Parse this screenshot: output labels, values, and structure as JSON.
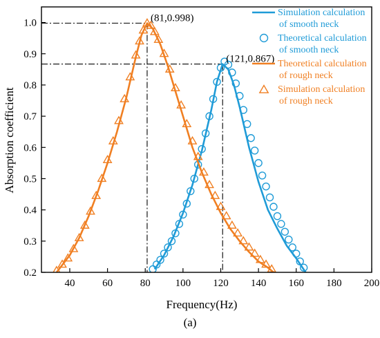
{
  "chart_data": {
    "type": "line",
    "xlabel": "Frequency(Hz)",
    "ylabel": "Absorption coefficient",
    "panel_label": "(a)",
    "xlim": [
      25,
      200
    ],
    "ylim": [
      0.2,
      1.05
    ],
    "xticks": [
      40,
      60,
      80,
      100,
      120,
      140,
      160,
      180,
      200
    ],
    "yticks": [
      0.2,
      0.3,
      0.4,
      0.5,
      0.6,
      0.7,
      0.8,
      0.9,
      1.0
    ],
    "xtick_labels": [
      "40",
      "60",
      "80",
      "100",
      "120",
      "140",
      "160",
      "180",
      "200"
    ],
    "ytick_labels": [
      "0.2",
      "0.3",
      "0.4",
      "0.5",
      "0.6",
      "0.7",
      "0.8",
      "0.9",
      "1.0"
    ],
    "grid": false,
    "legend_position": "top-right",
    "colors": {
      "smooth": "#1f9bd7",
      "rough": "#f07f22"
    },
    "series": [
      {
        "name": "Simulation calculation of smooth neck",
        "name_lines": [
          "Simulation calculation",
          "of smooth neck"
        ],
        "style": "line",
        "color": "#1f9bd7",
        "x": [
          85,
          90,
          95,
          100,
          105,
          110,
          115,
          118,
          121,
          124,
          127,
          130,
          135,
          140,
          145,
          150,
          155,
          160,
          165
        ],
        "y": [
          0.21,
          0.255,
          0.315,
          0.39,
          0.48,
          0.59,
          0.72,
          0.81,
          0.867,
          0.85,
          0.8,
          0.73,
          0.6,
          0.49,
          0.4,
          0.34,
          0.285,
          0.245,
          0.2
        ]
      },
      {
        "name": "Theoretical calculation of smooth neck",
        "name_lines": [
          "Theoretical calculation",
          "of smooth neck"
        ],
        "style": "circle",
        "color": "#1f9bd7",
        "x": [
          84,
          86,
          88,
          90,
          92,
          94,
          96,
          98,
          100,
          102,
          104,
          106,
          108,
          110,
          112,
          114,
          116,
          118,
          120,
          122,
          124,
          126,
          128,
          130,
          132,
          134,
          136,
          138,
          140,
          142,
          144,
          146,
          148,
          150,
          152,
          154,
          156,
          158,
          160,
          162,
          164
        ],
        "y": [
          0.21,
          0.225,
          0.24,
          0.26,
          0.28,
          0.3,
          0.325,
          0.355,
          0.385,
          0.42,
          0.46,
          0.5,
          0.545,
          0.595,
          0.645,
          0.7,
          0.755,
          0.81,
          0.855,
          0.875,
          0.865,
          0.84,
          0.805,
          0.765,
          0.72,
          0.675,
          0.63,
          0.59,
          0.55,
          0.51,
          0.475,
          0.44,
          0.41,
          0.38,
          0.355,
          0.33,
          0.305,
          0.28,
          0.26,
          0.235,
          0.215
        ]
      },
      {
        "name": "Theoretical calculation of rough neck",
        "name_lines": [
          "Theoretical calculation",
          "of rough neck"
        ],
        "style": "line",
        "color": "#f07f22",
        "x": [
          33,
          40,
          45,
          50,
          55,
          60,
          65,
          70,
          75,
          78,
          81,
          84,
          88,
          92,
          96,
          100,
          105,
          110,
          115,
          120,
          125,
          130,
          135,
          140,
          145,
          148
        ],
        "y": [
          0.2,
          0.255,
          0.31,
          0.38,
          0.46,
          0.55,
          0.65,
          0.76,
          0.89,
          0.96,
          0.998,
          0.98,
          0.93,
          0.86,
          0.78,
          0.7,
          0.6,
          0.52,
          0.45,
          0.39,
          0.34,
          0.3,
          0.265,
          0.235,
          0.215,
          0.2
        ]
      },
      {
        "name": "Simulation calculation of rough neck",
        "name_lines": [
          "Simulation calculation",
          "of rough neck"
        ],
        "style": "triangle",
        "color": "#f07f22",
        "x": [
          33,
          36,
          39,
          42,
          45,
          48,
          51,
          54,
          57,
          60,
          63,
          66,
          69,
          72,
          75,
          77,
          79,
          81,
          83,
          85,
          87,
          90,
          93,
          96,
          99,
          102,
          105,
          108,
          111,
          114,
          117,
          120,
          123,
          126,
          129,
          132,
          135,
          138,
          141,
          144,
          147
        ],
        "y": [
          0.205,
          0.225,
          0.245,
          0.275,
          0.31,
          0.35,
          0.395,
          0.445,
          0.5,
          0.56,
          0.62,
          0.685,
          0.755,
          0.825,
          0.895,
          0.94,
          0.975,
          0.998,
          0.99,
          0.97,
          0.945,
          0.9,
          0.85,
          0.79,
          0.735,
          0.675,
          0.62,
          0.57,
          0.52,
          0.48,
          0.445,
          0.41,
          0.38,
          0.35,
          0.325,
          0.3,
          0.28,
          0.26,
          0.24,
          0.225,
          0.21
        ]
      }
    ],
    "annotations": [
      {
        "label": "(81,0.998)",
        "x": 81,
        "y": 0.998
      },
      {
        "label": "(121,0.867)",
        "x": 121,
        "y": 0.867
      }
    ]
  }
}
